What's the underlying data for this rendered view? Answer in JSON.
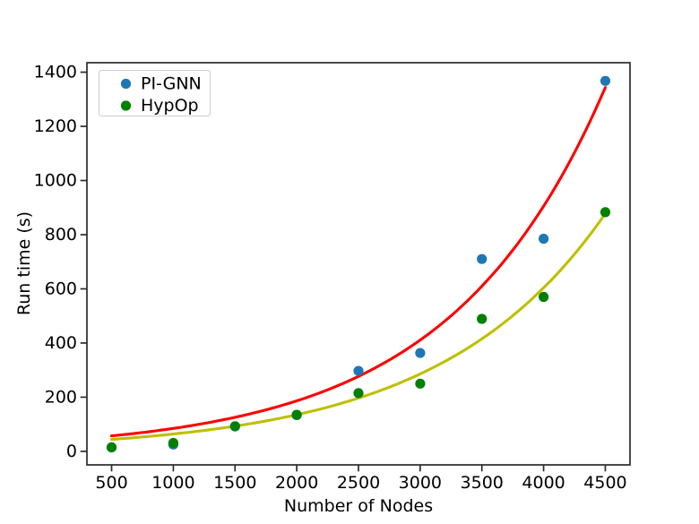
{
  "chart_data": {
    "type": "scatter",
    "title": "",
    "xlabel": "Number of Nodes",
    "ylabel": "Run time (s)",
    "x_ticks": [
      500,
      1000,
      1500,
      2000,
      2500,
      3000,
      3500,
      4000,
      4500
    ],
    "y_ticks": [
      0,
      200,
      400,
      600,
      800,
      1000,
      1200,
      1400
    ],
    "xlim": [
      300,
      4700
    ],
    "ylim": [
      -50,
      1435
    ],
    "grid": false,
    "legend_position": "upper left",
    "x": [
      500,
      1000,
      1500,
      2000,
      2500,
      3000,
      3500,
      4000,
      4500
    ],
    "series": [
      {
        "name": "PI-GNN",
        "color": "#1f77b4",
        "marker": "circle",
        "values": [
          14,
          25,
          92,
          134,
          297,
          363,
          710,
          785,
          1368
        ]
      },
      {
        "name": "HypOp",
        "color": "#008000",
        "marker": "circle",
        "values": [
          15,
          31,
          93,
          135,
          215,
          250,
          489,
          570,
          883
        ]
      }
    ],
    "fit_lines": [
      {
        "name": "PI-GNN exponential fit",
        "color": "#ff0000",
        "model": "a*exp(b*x)",
        "a": 38.4,
        "b": 0.00079,
        "x_range": [
          500,
          4500
        ]
      },
      {
        "name": "HypOp exponential fit",
        "color": "#bfbf00",
        "model": "a*exp(b*x)",
        "a": 30.3,
        "b": 0.000748,
        "x_range": [
          500,
          4500
        ]
      }
    ]
  },
  "legend": {
    "items": [
      {
        "label": "PI-GNN",
        "color": "#1f77b4"
      },
      {
        "label": "HypOp",
        "color": "#008000"
      }
    ]
  },
  "style_colors": {
    "spine": "#2b2b2b",
    "legend_border": "#cccccc",
    "background": "#ffffff"
  }
}
